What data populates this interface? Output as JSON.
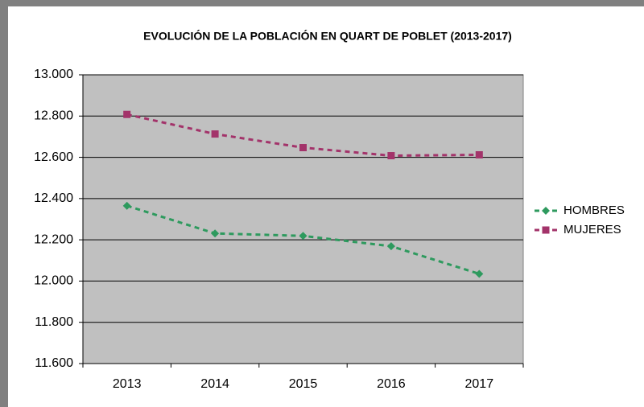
{
  "chart_data": {
    "type": "line",
    "title": "EVOLUCIÓN DE LA POBLACIÓN EN QUART DE POBLET (2013-2017)",
    "categories": [
      "2013",
      "2014",
      "2015",
      "2016",
      "2017"
    ],
    "series": [
      {
        "name": "HOMBRES",
        "color": "#2e9a5e",
        "marker": "diamond",
        "values": [
          12365,
          12231,
          12219,
          12169,
          12035
        ]
      },
      {
        "name": "MUJERES",
        "color": "#a3336a",
        "marker": "square",
        "values": [
          12808,
          12713,
          12647,
          12608,
          12612
        ]
      }
    ],
    "ylim": [
      11600,
      13000
    ],
    "yticks": [
      {
        "value": 11600,
        "label": "11.600"
      },
      {
        "value": 11800,
        "label": "11.800"
      },
      {
        "value": 12000,
        "label": "12.000"
      },
      {
        "value": 12200,
        "label": "12.200"
      },
      {
        "value": 12400,
        "label": "12.400"
      },
      {
        "value": 12600,
        "label": "12.600"
      },
      {
        "value": 12800,
        "label": "12.800"
      },
      {
        "value": 13000,
        "label": "13.000"
      }
    ],
    "grid": true,
    "legend": "right"
  }
}
